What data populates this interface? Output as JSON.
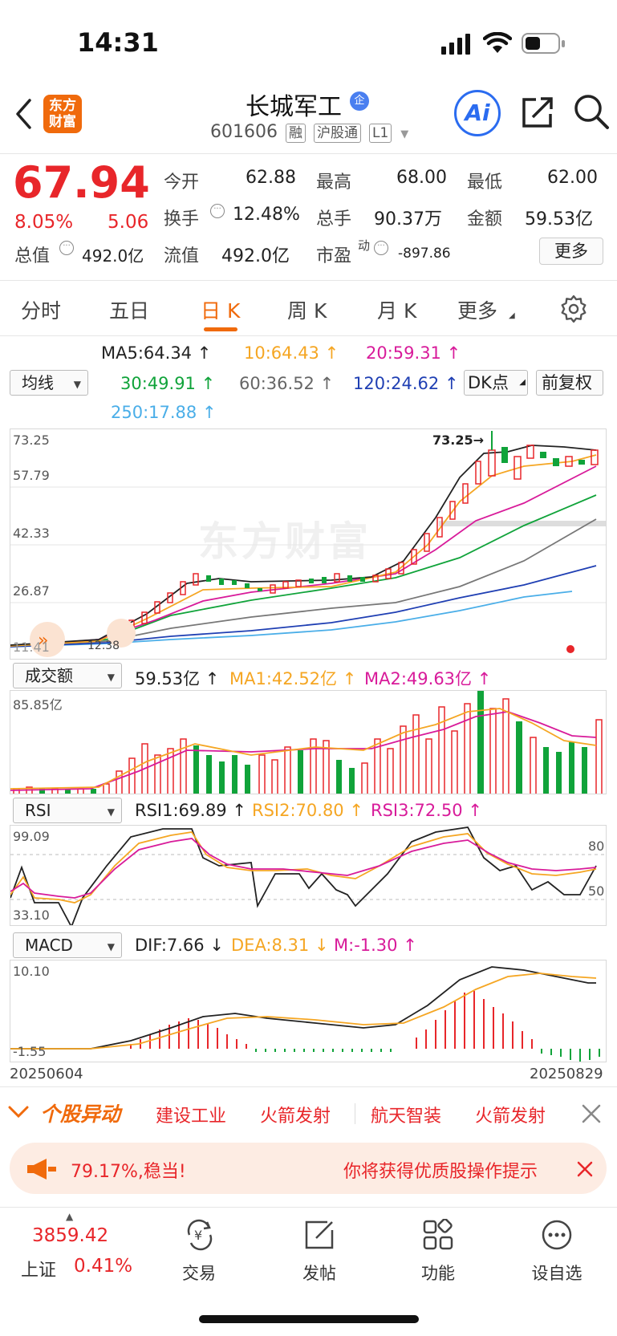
{
  "status_bar": {
    "time": "14:31"
  },
  "header": {
    "logo_text": [
      "东方",
      "财富"
    ],
    "stock_name": "长城军工",
    "badge": "企",
    "code": "601606",
    "tags": [
      "融",
      "沪股通",
      "L1"
    ],
    "ai_label": "Ai"
  },
  "quote": {
    "price": "67.94",
    "change_pct": "8.05%",
    "change": "5.06",
    "open_label": "今开",
    "open": "62.88",
    "high_label": "最高",
    "high": "68.00",
    "low_label": "最低",
    "low": "62.00",
    "turnover_label": "换手",
    "turnover": "12.48%",
    "volume_label": "总手",
    "volume": "90.37万",
    "amount_label": "金额",
    "amount": "59.53亿",
    "mktcap_label": "总值",
    "mktcap": "492.0亿",
    "float_label": "流值",
    "float": "492.0亿",
    "pe_label": "市盈",
    "pe_sup": "动",
    "pe": "-897.86",
    "more_button": "更多"
  },
  "tabs": [
    "分时",
    "五日",
    "日 K",
    "周 K",
    "月 K",
    "更多"
  ],
  "ma_bar": {
    "selector": "均线",
    "ma5": "MA5:64.34",
    "ma10": "10:64.43",
    "ma20": "20:59.31",
    "ma30": "30:49.91",
    "ma60": "60:36.52",
    "ma120": "120:24.62",
    "ma250": "250:17.88",
    "dk_button": "DK点",
    "adjust_button": "前复权"
  },
  "kline": {
    "y_labels": [
      "73.25",
      "57.79",
      "42.33",
      "26.87",
      "11.41"
    ],
    "max_label": "73.25",
    "min_label": "12.38",
    "watermark": "东方财富"
  },
  "volume_panel": {
    "selector": "成交额",
    "value": "59.53亿",
    "ma1": "MA1:42.52亿",
    "ma2": "MA2:49.63亿",
    "top_label": "85.85亿"
  },
  "rsi_panel": {
    "selector": "RSI",
    "rsi1": "RSI1:69.89",
    "rsi2": "RSI2:70.80",
    "rsi3": "RSI3:72.50",
    "top_label": "99.09",
    "bottom_label": "33.10",
    "line80": "80",
    "line50": "50"
  },
  "macd_panel": {
    "selector": "MACD",
    "dif": "DIF:7.66",
    "dea": "DEA:8.31",
    "m": "M:-1.30",
    "top_label": "10.10",
    "bottom_label": "-1.55"
  },
  "dates": {
    "start": "20250604",
    "end": "20250829"
  },
  "movers": {
    "title": "个股异动",
    "items": [
      "建设工业",
      "火箭发射",
      "航天智装",
      "火箭发射"
    ]
  },
  "promo": {
    "left": "79.17%,稳当!",
    "right": "你将获得优质股操作提示"
  },
  "bottom_nav": {
    "index_value": "3859.42",
    "index_name": "上证",
    "index_change": "0.41%",
    "items": [
      "交易",
      "发帖",
      "功能",
      "设自选"
    ]
  },
  "colors": {
    "up": "#e8262a",
    "down": "#10a33a",
    "accent": "#f06a0c"
  }
}
